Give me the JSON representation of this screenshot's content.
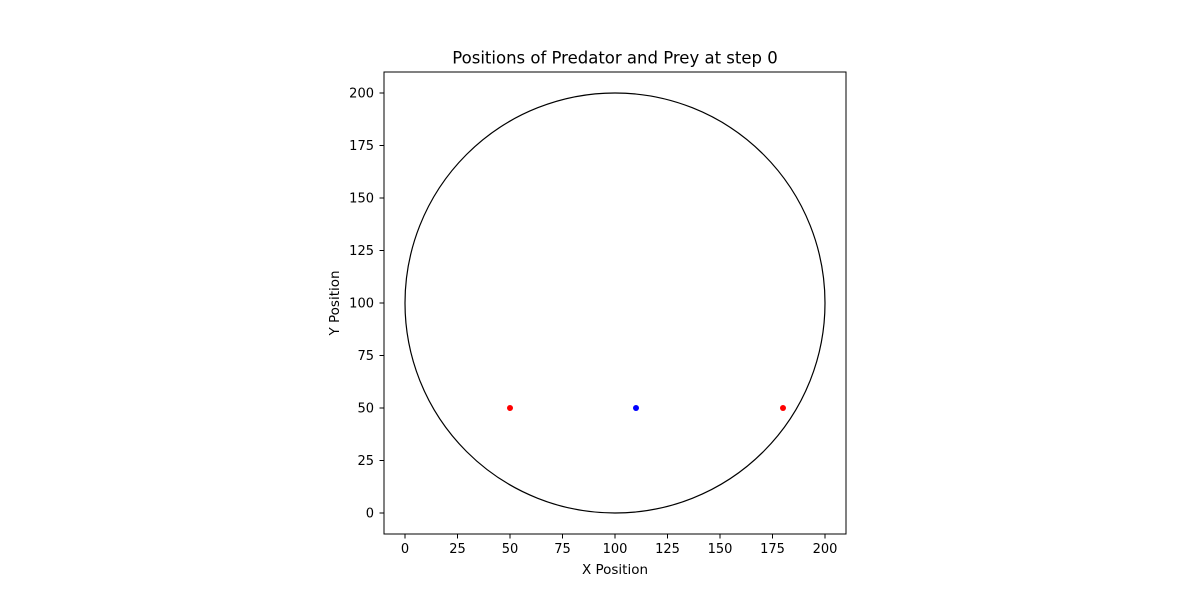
{
  "chart_data": {
    "type": "scatter",
    "title": "Positions of Predator and Prey at step 0",
    "xlabel": "X Position",
    "ylabel": "Y Position",
    "xlim": [
      -10,
      210
    ],
    "ylim": [
      -10,
      210
    ],
    "xticks": [
      0,
      25,
      50,
      75,
      100,
      125,
      150,
      175,
      200
    ],
    "yticks": [
      0,
      25,
      50,
      75,
      100,
      125,
      150,
      175,
      200
    ],
    "grid": false,
    "boundary_circle": {
      "cx": 100,
      "cy": 100,
      "r": 100,
      "color": "#000000"
    },
    "series": [
      {
        "color": "#ff0000",
        "points": [
          {
            "x": 50,
            "y": 50
          },
          {
            "x": 180,
            "y": 50
          }
        ]
      },
      {
        "color": "#0000ff",
        "points": [
          {
            "x": 110,
            "y": 50
          }
        ]
      }
    ]
  }
}
